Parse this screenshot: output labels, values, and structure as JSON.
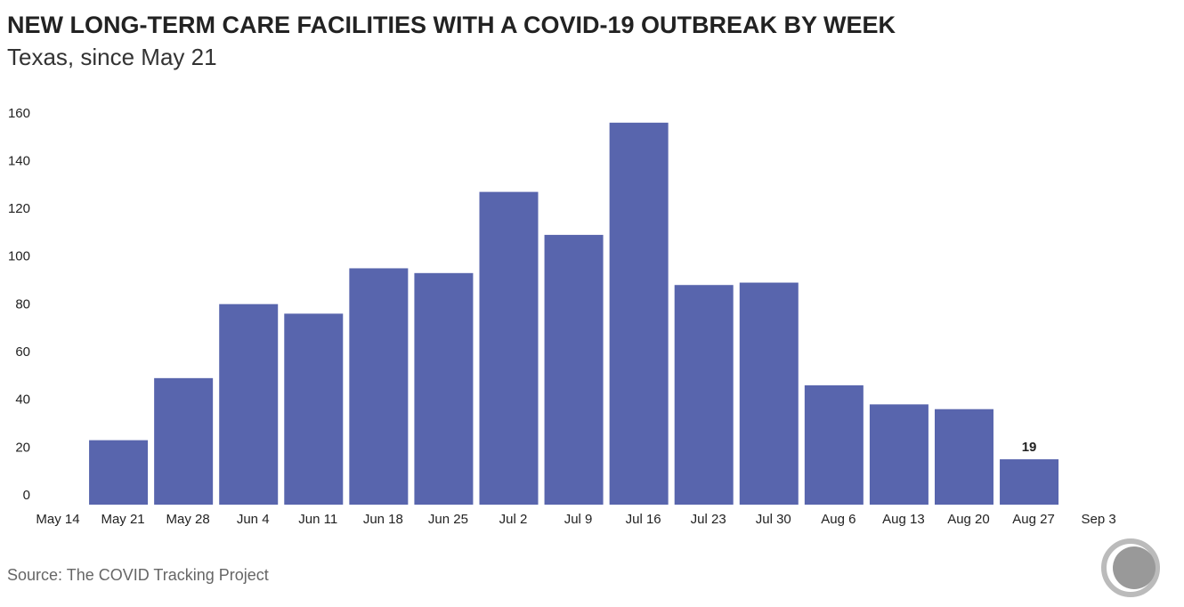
{
  "chart_data": {
    "type": "bar",
    "title": "NEW LONG-TERM CARE FACILITIES WITH A COVID-19 OUTBREAK BY WEEK",
    "subtitle": "Texas, since May 21",
    "source": "Source: The COVID Tracking Project",
    "categories": [
      "May 14",
      "May 21",
      "May 28",
      "Jun 4",
      "Jun 11",
      "Jun 18",
      "Jun 25",
      "Jul 2",
      "Jul 9",
      "Jul 16",
      "Jul 23",
      "Jul 30",
      "Aug 6",
      "Aug 13",
      "Aug 20",
      "Aug 27",
      "Sep 3"
    ],
    "values": [
      null,
      27,
      53,
      84,
      80,
      99,
      97,
      131,
      113,
      160,
      92,
      93,
      50,
      42,
      40,
      19,
      null
    ],
    "color": "#5865ad",
    "ylim": [
      0,
      170
    ],
    "yticks": [
      0,
      20,
      40,
      60,
      80,
      100,
      120,
      140,
      160
    ],
    "grid": false
  }
}
